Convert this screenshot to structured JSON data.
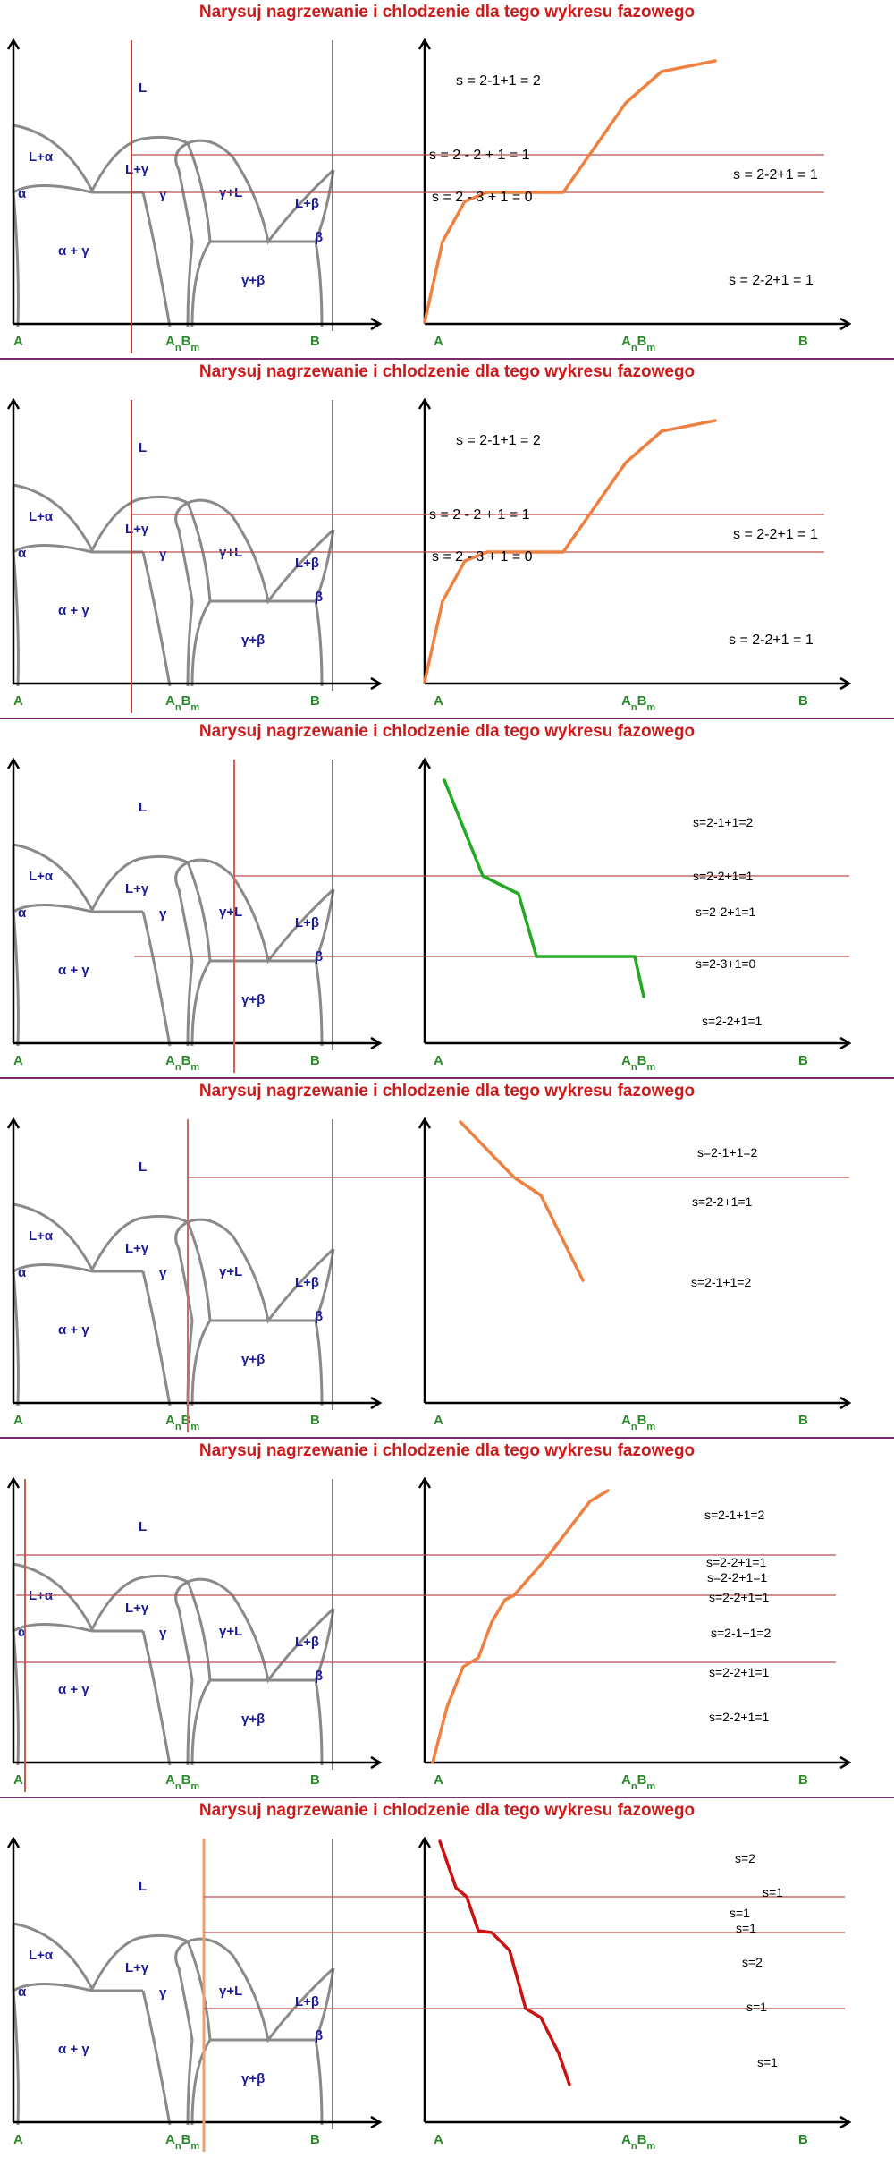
{
  "title": "Narysuj nagrzewanie i chlodzenie dla tego wykresu fazowego",
  "colors": {
    "title": "#cc1a1a",
    "phase_curve": "#8a8a8a",
    "region_label": "#1a1a99",
    "axis_label": "#2a8a2a",
    "separator": "#7a2a6a",
    "horizontal_marker": "#b85050"
  },
  "phase_diagram": {
    "regions": {
      "liquid": "L",
      "l_alpha": "L+α",
      "alpha": "α",
      "l_gamma": "L+γ",
      "gamma": "γ",
      "gamma_l": "γ+L",
      "l_beta": "L+β",
      "beta": "β",
      "alpha_gamma": "α + γ",
      "gamma_beta": "γ+β"
    },
    "axis": {
      "left": "A",
      "middle_base": "A",
      "middle_sub1": "n",
      "middle_mid": "B",
      "middle_sub2": "m",
      "right": "B"
    }
  },
  "panels": [
    {
      "id": 1,
      "line_color": "#c0392b",
      "curve_color": "#f08040",
      "labels": [
        {
          "text": "s = 2-1+1 = 2"
        },
        {
          "text": "s = 2 - 2 + 1 = 1"
        },
        {
          "text": "s = 2 - 3 + 1 = 0"
        },
        {
          "text": "s = 2-2+1 = 1"
        },
        {
          "text": "s = 2-2+1 = 1"
        }
      ]
    },
    {
      "id": 2,
      "line_color": "#c0392b",
      "curve_color": "#f08040",
      "labels": [
        {
          "text": "s = 2-1+1 = 2"
        },
        {
          "text": "s = 2 - 2 + 1 = 1"
        },
        {
          "text": "s = 2 - 3 + 1 = 0"
        },
        {
          "text": "s = 2-2+1 = 1"
        },
        {
          "text": "s = 2-2+1 = 1"
        }
      ]
    },
    {
      "id": 3,
      "line_color": "#d96050",
      "curve_color": "#22aa22",
      "labels": [
        {
          "text": "s=2-1+1=2"
        },
        {
          "text": "s=2-2+1=1"
        },
        {
          "text": "s=2-2+1=1"
        },
        {
          "text": "s=2-3+1=0"
        },
        {
          "text": "s=2-2+1=1"
        }
      ]
    },
    {
      "id": 4,
      "line_color": "#c07060",
      "curve_color": "#f08040",
      "labels": [
        {
          "text": "s=2-1+1=2"
        },
        {
          "text": "s=2-2+1=1"
        },
        {
          "text": "s=2-1+1=2"
        }
      ]
    },
    {
      "id": 5,
      "line_color": "#c06050",
      "curve_color": "#f08040",
      "labels": [
        {
          "text": "s=2-1+1=2"
        },
        {
          "text": "s=2-2+1=1"
        },
        {
          "text": "s=2-2+1=1"
        },
        {
          "text": "s=2-2+1=1"
        },
        {
          "text": "s=2-1+1=2"
        },
        {
          "text": "s=2-2+1=1"
        },
        {
          "text": "s=2-2+1=1"
        }
      ]
    },
    {
      "id": 6,
      "line_color": "#f0a070",
      "curve_color": "#cc1111",
      "labels": [
        {
          "text": "s=2"
        },
        {
          "text": "s=1"
        },
        {
          "text": "s=1"
        },
        {
          "text": "s=1"
        },
        {
          "text": "s=2"
        },
        {
          "text": "s=1"
        },
        {
          "text": "s=1"
        }
      ]
    }
  ]
}
